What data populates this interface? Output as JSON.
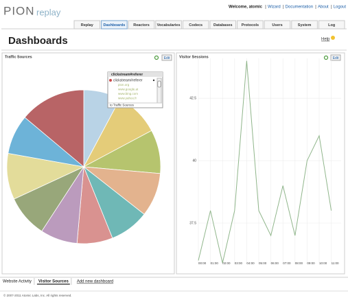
{
  "header": {
    "logo": "PION",
    "logo_sub": "replay",
    "welcome": "Welcome, atomic",
    "links": [
      "Wizard",
      "Documentation",
      "About",
      "Logout"
    ]
  },
  "tabs": [
    "Replay",
    "Dashboards",
    "Reactors",
    "Vocabularies",
    "Codecs",
    "Databases",
    "Protocols",
    "Users",
    "System",
    "Log"
  ],
  "active_tab": 1,
  "page_title": "Dashboards",
  "help": "Help",
  "chart_data": [
    {
      "type": "pie",
      "title": "Traffic Sources",
      "edit_button": "Edit",
      "values": [
        7.8,
        9.4,
        9.2,
        9.2,
        8.3,
        7.5,
        7.8,
        8.9,
        9.7,
        8.3,
        13.9
      ],
      "colors": [
        "#b9d3e6",
        "#e4cc79",
        "#b6c46e",
        "#e3b38e",
        "#6fb8b6",
        "#d99290",
        "#bb9bbd",
        "#98a77a",
        "#e3dc9a",
        "#6db3d8",
        "#b86466"
      ]
    },
    {
      "type": "line",
      "title": "Visitor Sessions",
      "edit_button": "Edit",
      "categories": [
        "00:00",
        "01:00",
        "02:00",
        "03:00",
        "04:00",
        "05:00",
        "06:00",
        "07:00",
        "08:00",
        "09:00",
        "10:00",
        "11:00"
      ],
      "values": [
        36.0,
        38.0,
        35.9,
        38.0,
        44.0,
        38.0,
        37.0,
        39.0,
        37.0,
        40.0,
        41.0,
        38.0
      ],
      "color": "#8fb58a",
      "ylim": [
        35.85,
        44.1
      ],
      "yticks": [
        37.5,
        40,
        42.5
      ],
      "grid": true
    }
  ],
  "popup": {
    "title": "clickstream#referer",
    "field": "clickstream#referer",
    "items": [
      "pion.org",
      "www.google.at",
      "www.bing.com",
      "www.yahoo.fr"
    ],
    "footer": "to Traffic Sources"
  },
  "dashboard_tabs": [
    "Website Activity",
    "Visitor Sources"
  ],
  "active_dashboard": 1,
  "add_dashboard": "Add new dashboard",
  "footer": "© 2007-2011 Atomic Labs, Inc. All rights reserved."
}
